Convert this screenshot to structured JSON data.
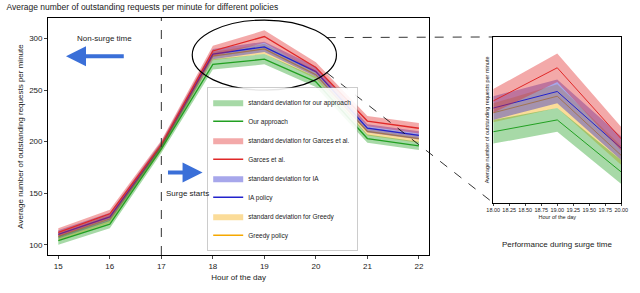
{
  "chart_data": [
    {
      "type": "line",
      "title": "Average number of outstanding requests per minute for different policies",
      "x_label": "Hour of the day",
      "y_label": "Average number of outstanding requests per minute",
      "x": [
        15,
        16,
        17,
        18,
        19,
        20,
        21,
        22
      ],
      "xlim": [
        14.8,
        22.2
      ],
      "xticks": [
        15,
        16,
        17,
        18,
        19,
        20,
        21,
        22
      ],
      "ylim": [
        90,
        320
      ],
      "yticks": [
        100,
        150,
        200,
        250,
        300
      ],
      "legend": "lower center",
      "vertical_line": 17,
      "annotations": [
        {
          "text": "Non-surge time",
          "x": 15.9,
          "y": 300
        },
        {
          "text": "Surge starts",
          "x": 17.05,
          "y": 150
        }
      ],
      "series": [
        {
          "name": "Greedy policy",
          "band_name": "standard deviation for Greedy",
          "color": "#f5a800",
          "values": [
            108,
            125,
            195,
            283,
            290,
            265,
            210,
            203
          ],
          "error": [
            4,
            4,
            4,
            4,
            5,
            4,
            4,
            4
          ]
        },
        {
          "name": "IA policy",
          "band_name": "standard deviation for IA",
          "color": "#2222cc",
          "values": [
            110,
            127,
            196,
            285,
            292,
            268,
            213,
            206
          ],
          "error": [
            4,
            4,
            4,
            5,
            5,
            5,
            4,
            4
          ]
        },
        {
          "name": "Garces et al.",
          "band_name": "standard deviation for Garces et al.",
          "color": "#e02828",
          "values": [
            112,
            130,
            197,
            288,
            302,
            272,
            220,
            213
          ],
          "error": [
            4,
            4,
            4,
            5,
            6,
            5,
            5,
            5
          ]
        },
        {
          "name": "Our approach",
          "band_name": "standard deviation for our approach",
          "color": "#22a022",
          "values": [
            104,
            120,
            193,
            275,
            280,
            258,
            203,
            196
          ],
          "error": [
            4,
            4,
            4,
            5,
            5,
            5,
            4,
            4
          ]
        }
      ]
    },
    {
      "type": "line",
      "title": "Performance during surge time",
      "x_label": "Hour of the day",
      "y_label": "Average number of outstanding requests per minute",
      "x": [
        18,
        19,
        20
      ],
      "xlim": [
        18,
        20
      ],
      "xticks": [
        {
          "value": 18,
          "label": "18.00"
        },
        {
          "value": 18.25,
          "label": "18.25"
        },
        {
          "value": 18.5,
          "label": "18.50"
        },
        {
          "value": 18.75,
          "label": "18.75"
        },
        {
          "value": 19,
          "label": "19.00"
        },
        {
          "value": 19.25,
          "label": "19.25"
        },
        {
          "value": 19.5,
          "label": "19.50"
        },
        {
          "value": 19.75,
          "label": "19.75"
        },
        {
          "value": 20,
          "label": "20.00"
        }
      ],
      "ylim": [
        245,
        315
      ],
      "tick_labels": "x",
      "series": [
        {
          "color": "#f5a800",
          "values": [
            283,
            290,
            265
          ],
          "error": [
            4,
            5,
            4
          ]
        },
        {
          "color": "#2222cc",
          "values": [
            285,
            292,
            268
          ],
          "error": [
            5,
            5,
            5
          ]
        },
        {
          "color": "#e02828",
          "values": [
            288,
            302,
            272
          ],
          "error": [
            5,
            6,
            5
          ]
        },
        {
          "color": "#22a022",
          "values": [
            275,
            280,
            258
          ],
          "error": [
            5,
            5,
            5
          ]
        }
      ]
    }
  ]
}
